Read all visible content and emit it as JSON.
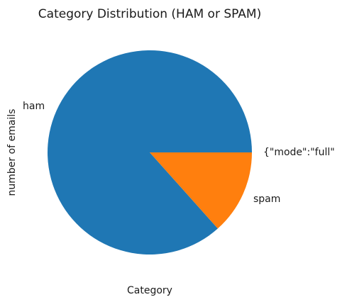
{
  "chart_data": {
    "type": "pie",
    "title": "Category Distribution (HAM or SPAM)",
    "xlabel": "Category",
    "ylabel": "number of emails",
    "slices": [
      {
        "label": "ham",
        "value": 86.6,
        "color": "#1f77b4"
      },
      {
        "label": "spam",
        "value": 13.4,
        "color": "#ff7f0e"
      }
    ],
    "annotation": "{\"mode\":\"full\""
  }
}
